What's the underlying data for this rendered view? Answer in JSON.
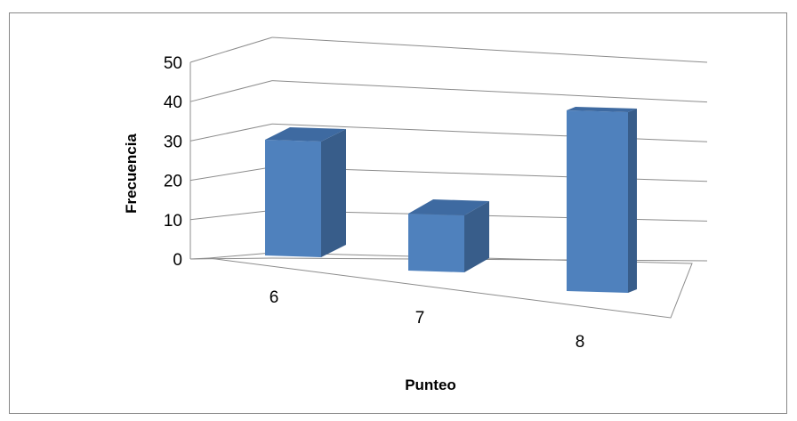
{
  "chart_data": {
    "type": "bar",
    "categories": [
      "6",
      "7",
      "8"
    ],
    "values": [
      30,
      15,
      47
    ],
    "xlabel": "Punteo",
    "ylabel": "Frecuencia",
    "ylim": [
      0,
      50
    ],
    "yticks": [
      0,
      10,
      20,
      30,
      40,
      50
    ],
    "grid": true,
    "legend": "none",
    "style": "3d-column",
    "colors": {
      "front": "#4f81bd",
      "side": "#385d8a",
      "top": "#3e6aa1",
      "grid": "#8c8c8c"
    }
  }
}
